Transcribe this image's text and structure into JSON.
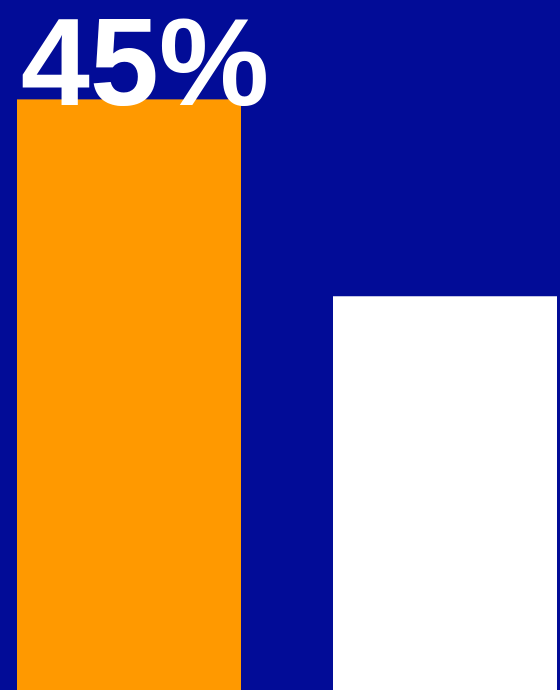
{
  "chart_data": {
    "type": "bar",
    "values": [
      45,
      30
    ],
    "data_labels": [
      "45%",
      ""
    ],
    "ylim": [
      0,
      48
    ],
    "grid": false,
    "colors": {
      "background": "#020c97",
      "bars": [
        "#ff9900",
        "#ffffff"
      ],
      "label": "#ffffff"
    }
  }
}
